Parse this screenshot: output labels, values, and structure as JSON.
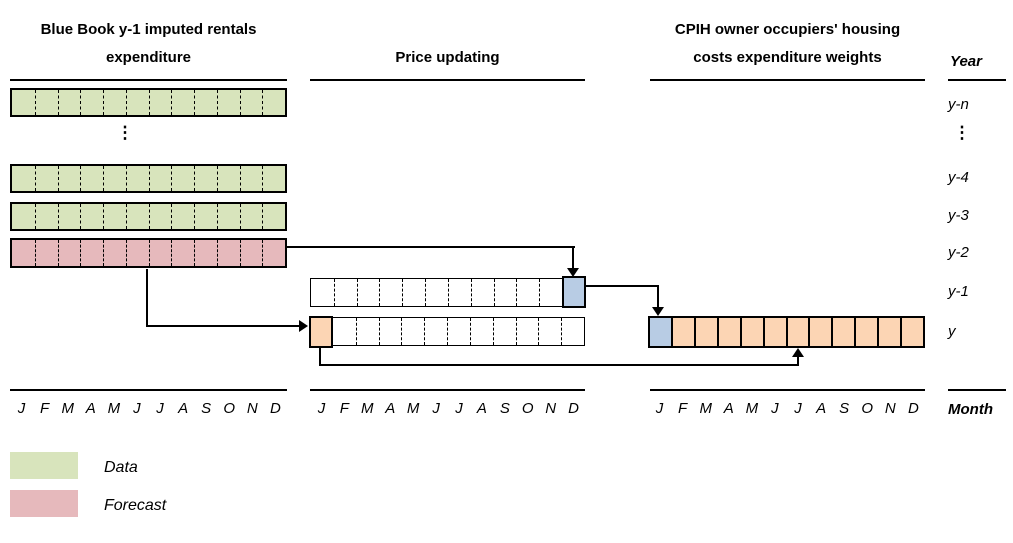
{
  "headers": {
    "left_line1": "Blue Book y-1 imputed rentals",
    "left_line2": "expenditure",
    "middle": "Price updating",
    "right_line1": "CPIH owner occupiers' housing",
    "right_line2": "costs expenditure weights",
    "year": "Year",
    "month": "Month"
  },
  "months": [
    "J",
    "F",
    "M",
    "A",
    "M",
    "J",
    "J",
    "A",
    "S",
    "O",
    "N",
    "D"
  ],
  "year_labels": {
    "y_n": "y-n",
    "ellipsis": "⋮",
    "y_4": "y-4",
    "y_3": "y-3",
    "y_2": "y-2",
    "y_1": "y-1",
    "y": "y"
  },
  "legend": {
    "data_label": "Data",
    "forecast_label": "Forecast"
  },
  "colors": {
    "data": "#d8e4bc",
    "forecast": "#e6b9bc",
    "price_index": "#b8cce4",
    "weights": "#fcd5b4"
  }
}
